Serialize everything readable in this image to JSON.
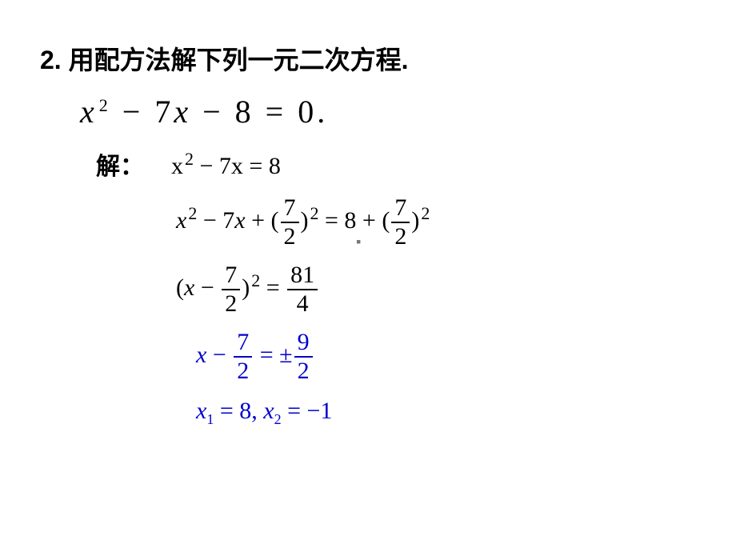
{
  "title": "2. 用配方法解下列一元二次方程.",
  "main_equation": {
    "lhs_term1_var": "x",
    "lhs_term1_exp": "2",
    "op1": "−",
    "lhs_term2_coef": "7",
    "lhs_term2_var": "x",
    "op2": "−",
    "lhs_term3": "8",
    "eq": "=",
    "rhs": "0."
  },
  "solution_label": "解：",
  "step1": {
    "text_parts": [
      "x",
      "2",
      " − 7",
      "x",
      " = 8"
    ]
  },
  "step2": {
    "left_a": "x",
    "left_a_exp": "2",
    "left_b": " − 7",
    "left_c": "x",
    "plus": " + (",
    "frac1_num": "7",
    "frac1_den": "2",
    "close_sq": ")",
    "exp2": "2",
    "eq": " = 8 + (",
    "frac2_num": "7",
    "frac2_den": "2",
    "close2": ")",
    "exp3": "2"
  },
  "step3": {
    "open": "(",
    "x": "x",
    "minus": " − ",
    "frac_num": "7",
    "frac_den": "2",
    "close": ")",
    "exp": "2",
    "eq": " = ",
    "rhs_num": "81",
    "rhs_den": "4"
  },
  "step4": {
    "x": "x",
    "minus": " − ",
    "frac_num": "7",
    "frac_den": "2",
    "eq": " = ±",
    "rhs_num": "9",
    "rhs_den": "2"
  },
  "step5": {
    "x1": "x",
    "sub1": "1",
    "eq1": " = 8, ",
    "x2": "x",
    "sub2": "2",
    "eq2": " = −1"
  },
  "colors": {
    "text": "#000000",
    "highlight": "#0000cc",
    "background": "#ffffff"
  },
  "dot": "▪"
}
